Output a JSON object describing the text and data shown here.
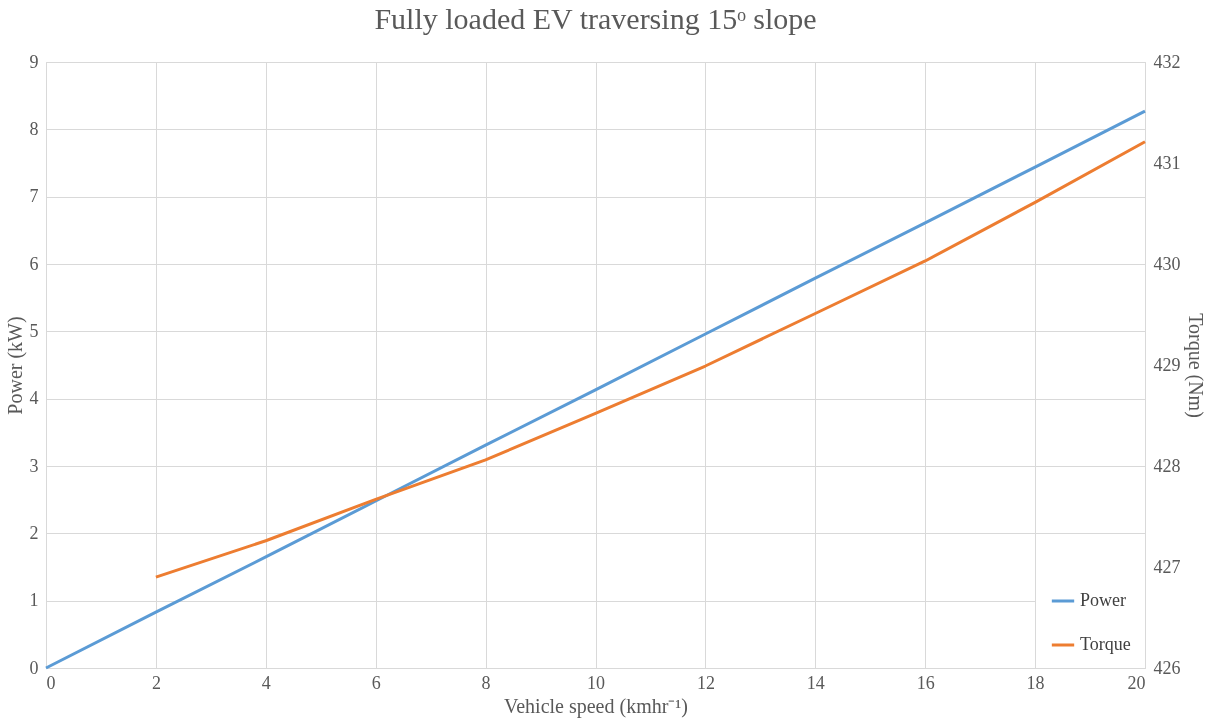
{
  "chart_data": {
    "type": "line",
    "title": "Fully loaded EV traversing 15ᵒ slope",
    "xlabel": "Vehicle speed (kmhr⁻¹)",
    "ylabel": "Power (kW)",
    "y2label": "Torque (Nm)",
    "xlim": [
      0,
      20
    ],
    "xticks": [
      0,
      2,
      4,
      6,
      8,
      10,
      12,
      14,
      16,
      18,
      20
    ],
    "ylim": [
      0,
      9
    ],
    "yticks": [
      0,
      1,
      2,
      3,
      4,
      5,
      6,
      7,
      8,
      9
    ],
    "y2lim": [
      426,
      432
    ],
    "y2ticks": [
      426,
      427,
      428,
      429,
      430,
      431,
      432
    ],
    "grid": true,
    "legend": "bottom right",
    "marker": "none",
    "line_style": "solid",
    "series": [
      {
        "name": "Power",
        "color": "#5b9bd5",
        "x": [
          0,
          2,
          4,
          6,
          8,
          10,
          12,
          14,
          16,
          18,
          20
        ],
        "values": [
          0,
          0.83,
          1.65,
          2.48,
          3.31,
          4.13,
          4.96,
          5.79,
          6.61,
          7.44,
          8.27
        ]
      },
      {
        "name": "Torque",
        "color": "#ed7d31",
        "axis": "y2",
        "x": [
          2,
          4,
          6,
          8,
          10,
          12,
          14,
          16,
          18,
          20
        ],
        "values": [
          426.9,
          427.26,
          427.67,
          428.06,
          428.52,
          428.99,
          429.51,
          430.03,
          430.61,
          431.21
        ]
      }
    ]
  }
}
